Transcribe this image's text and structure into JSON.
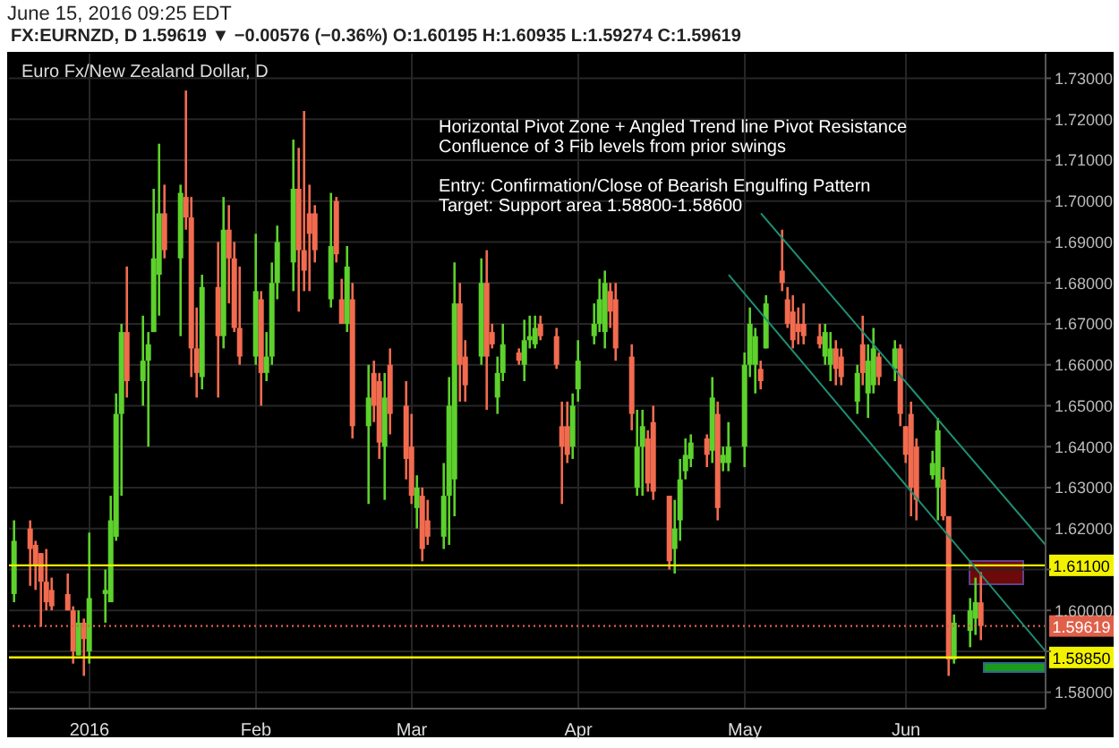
{
  "chart_data": {
    "type": "candlestick",
    "title": "FX:EURNZD, D 1.59619 ▼ −0.00576 (−0.36%) O:1.60195 H:1.60935 L:1.59274 C:1.59619",
    "subtitle": "Euro Fx/New Zealand Dollar, D",
    "annotations": [
      "June 15, 2016 09:25 EDT",
      "Horizontal Pivot Zone + Angled Trend line Pivot Resistance",
      "Confluence of 3 Fib levels from prior swings",
      "Entry: Confirmation/Close of Bearish Engulfing Pattern",
      "Target: Support area 1.58800-1.58600"
    ],
    "x": [
      "2015-12-18",
      "2015-12-21",
      "2015-12-22",
      "2015-12-23",
      "2015-12-24",
      "2015-12-25",
      "2015-12-28",
      "2015-12-29",
      "2015-12-30",
      "2015-12-31",
      "2016-01-01",
      "2016-01-04",
      "2016-01-05",
      "2016-01-06",
      "2016-01-07",
      "2016-01-08",
      "2016-01-11",
      "2016-01-12",
      "2016-01-13",
      "2016-01-14",
      "2016-01-15",
      "2016-01-18",
      "2016-01-19",
      "2016-01-20",
      "2016-01-21",
      "2016-01-22",
      "2016-01-25",
      "2016-01-26",
      "2016-01-27",
      "2016-01-28",
      "2016-01-29",
      "2016-02-01",
      "2016-02-02",
      "2016-02-03",
      "2016-02-04",
      "2016-02-05",
      "2016-02-08",
      "2016-02-09",
      "2016-02-10",
      "2016-02-11",
      "2016-02-12",
      "2016-02-15",
      "2016-02-16",
      "2016-02-17",
      "2016-02-18",
      "2016-02-19",
      "2016-02-22",
      "2016-02-23",
      "2016-02-24",
      "2016-02-25",
      "2016-02-26",
      "2016-02-29",
      "2016-03-01",
      "2016-03-02",
      "2016-03-03",
      "2016-03-04",
      "2016-03-07",
      "2016-03-08",
      "2016-03-09",
      "2016-03-10",
      "2016-03-11",
      "2016-03-14",
      "2016-03-15",
      "2016-03-16",
      "2016-03-17",
      "2016-03-18",
      "2016-03-21",
      "2016-03-22",
      "2016-03-23",
      "2016-03-24",
      "2016-03-25",
      "2016-03-28",
      "2016-03-29",
      "2016-03-30",
      "2016-03-31",
      "2016-04-01",
      "2016-04-04",
      "2016-04-05",
      "2016-04-06",
      "2016-04-07",
      "2016-04-08",
      "2016-04-11",
      "2016-04-12",
      "2016-04-13",
      "2016-04-14",
      "2016-04-15",
      "2016-04-18",
      "2016-04-19",
      "2016-04-20",
      "2016-04-21",
      "2016-04-22",
      "2016-04-25",
      "2016-04-26",
      "2016-04-27",
      "2016-04-28",
      "2016-04-29",
      "2016-05-02",
      "2016-05-03",
      "2016-05-04",
      "2016-05-05",
      "2016-05-06",
      "2016-05-09",
      "2016-05-10",
      "2016-05-11",
      "2016-05-12",
      "2016-05-13",
      "2016-05-16",
      "2016-05-17",
      "2016-05-18",
      "2016-05-19",
      "2016-05-20",
      "2016-05-23",
      "2016-05-24",
      "2016-05-25",
      "2016-05-26",
      "2016-05-27",
      "2016-05-30",
      "2016-05-31",
      "2016-06-01",
      "2016-06-02",
      "2016-06-03",
      "2016-06-06",
      "2016-06-07",
      "2016-06-08",
      "2016-06-09",
      "2016-06-10",
      "2016-06-13",
      "2016-06-14",
      "2016-06-15"
    ],
    "ohlc": [
      [
        1.604,
        1.622,
        1.602,
        1.617
      ],
      [
        1.62,
        1.622,
        1.606,
        1.615
      ],
      [
        1.616,
        1.617,
        1.605,
        1.611
      ],
      [
        1.614,
        1.614,
        1.596,
        1.607
      ],
      [
        1.607,
        1.615,
        1.6,
        1.602
      ],
      [
        1.605,
        1.608,
        1.6,
        1.601
      ],
      [
        1.604,
        1.609,
        1.6,
        1.6
      ],
      [
        1.6,
        1.601,
        1.587,
        1.59
      ],
      [
        1.589,
        1.6,
        1.589,
        1.597
      ],
      [
        1.597,
        1.598,
        1.584,
        1.593
      ],
      [
        1.59,
        1.619,
        1.587,
        1.603
      ],
      [
        1.604,
        1.61,
        1.597,
        1.605
      ],
      [
        1.602,
        1.628,
        1.602,
        1.622
      ],
      [
        1.618,
        1.653,
        1.617,
        1.648
      ],
      [
        1.648,
        1.67,
        1.628,
        1.668
      ],
      [
        1.668,
        1.684,
        1.652,
        1.656
      ],
      [
        1.656,
        1.672,
        1.65,
        1.661
      ],
      [
        1.661,
        1.668,
        1.64,
        1.665
      ],
      [
        1.668,
        1.703,
        1.668,
        1.686
      ],
      [
        1.682,
        1.714,
        1.672,
        1.697
      ],
      [
        1.697,
        1.704,
        1.686,
        1.688
      ],
      [
        1.686,
        1.704,
        1.667,
        1.702
      ],
      [
        1.701,
        1.727,
        1.693,
        1.696
      ],
      [
        1.696,
        1.701,
        1.657,
        1.664
      ],
      [
        1.664,
        1.674,
        1.652,
        1.658
      ],
      [
        1.657,
        1.682,
        1.654,
        1.679
      ],
      [
        1.679,
        1.69,
        1.652,
        1.667
      ],
      [
        1.667,
        1.701,
        1.664,
        1.693
      ],
      [
        1.693,
        1.699,
        1.675,
        1.686
      ],
      [
        1.686,
        1.69,
        1.668,
        1.669
      ],
      [
        1.669,
        1.684,
        1.66,
        1.662
      ],
      [
        1.662,
        1.692,
        1.66,
        1.678
      ],
      [
        1.676,
        1.678,
        1.65,
        1.658
      ],
      [
        1.658,
        1.668,
        1.656,
        1.662
      ],
      [
        1.662,
        1.685,
        1.66,
        1.68
      ],
      [
        1.68,
        1.694,
        1.676,
        1.69
      ],
      [
        1.685,
        1.715,
        1.678,
        1.703
      ],
      [
        1.703,
        1.713,
        1.673,
        1.688
      ],
      [
        1.688,
        1.722,
        1.678,
        1.683
      ],
      [
        1.697,
        1.704,
        1.678,
        1.692
      ],
      [
        1.697,
        1.699,
        1.685,
        1.688
      ],
      [
        1.676,
        1.702,
        1.674,
        1.689
      ],
      [
        1.7,
        1.701,
        1.685,
        1.687
      ],
      [
        1.676,
        1.681,
        1.67,
        1.67
      ],
      [
        1.67,
        1.689,
        1.668,
        1.684
      ],
      [
        1.676,
        1.68,
        1.642,
        1.645
      ],
      [
        1.645,
        1.66,
        1.626,
        1.652
      ],
      [
        1.658,
        1.661,
        1.646,
        1.65
      ],
      [
        1.656,
        1.658,
        1.637,
        1.641
      ],
      [
        1.64,
        1.658,
        1.627,
        1.652
      ],
      [
        1.66,
        1.664,
        1.643,
        1.648
      ],
      [
        1.65,
        1.656,
        1.632,
        1.637
      ],
      [
        1.64,
        1.648,
        1.626,
        1.628
      ],
      [
        1.625,
        1.633,
        1.62,
        1.63
      ],
      [
        1.628,
        1.63,
        1.612,
        1.615
      ],
      [
        1.622,
        1.627,
        1.616,
        1.618
      ],
      [
        1.618,
        1.636,
        1.615,
        1.628
      ],
      [
        1.628,
        1.657,
        1.616,
        1.65
      ],
      [
        1.632,
        1.685,
        1.623,
        1.675
      ],
      [
        1.675,
        1.68,
        1.651,
        1.66
      ],
      [
        1.662,
        1.666,
        1.651,
        1.655
      ],
      [
        1.662,
        1.686,
        1.66,
        1.68
      ],
      [
        1.68,
        1.688,
        1.649,
        1.662
      ],
      [
        1.668,
        1.67,
        1.664,
        1.665
      ],
      [
        1.652,
        1.662,
        1.648,
        1.658
      ],
      [
        1.658,
        1.67,
        1.656,
        1.665
      ],
      [
        1.663,
        1.664,
        1.66,
        1.661
      ],
      [
        1.66,
        1.671,
        1.656,
        1.666
      ],
      [
        1.666,
        1.672,
        1.664,
        1.667
      ],
      [
        1.665,
        1.672,
        1.664,
        1.669
      ],
      [
        1.67,
        1.672,
        1.666,
        1.667
      ],
      [
        1.667,
        1.669,
        1.659,
        1.66
      ],
      [
        1.645,
        1.651,
        1.626,
        1.64
      ],
      [
        1.645,
        1.651,
        1.636,
        1.638
      ],
      [
        1.64,
        1.653,
        1.637,
        1.65
      ],
      [
        1.654,
        1.666,
        1.651,
        1.661
      ],
      [
        1.667,
        1.675,
        1.665,
        1.67
      ],
      [
        1.67,
        1.681,
        1.668,
        1.676
      ],
      [
        1.668,
        1.683,
        1.664,
        1.68
      ],
      [
        1.678,
        1.68,
        1.669,
        1.673
      ],
      [
        1.676,
        1.68,
        1.661,
        1.664
      ],
      [
        1.662,
        1.665,
        1.644,
        1.648
      ],
      [
        1.63,
        1.649,
        1.628,
        1.64
      ],
      [
        1.64,
        1.649,
        1.628,
        1.645
      ],
      [
        1.642,
        1.644,
        1.629,
        1.631
      ],
      [
        1.646,
        1.65,
        1.627,
        1.629
      ],
      [
        1.628,
        1.628,
        1.61,
        1.612
      ],
      [
        1.615,
        1.627,
        1.609,
        1.62
      ],
      [
        1.622,
        1.637,
        1.617,
        1.632
      ],
      [
        1.634,
        1.642,
        1.632,
        1.638
      ],
      [
        1.637,
        1.643,
        1.635,
        1.641
      ],
      [
        1.642,
        1.643,
        1.635,
        1.638
      ],
      [
        1.639,
        1.657,
        1.636,
        1.652
      ],
      [
        1.648,
        1.651,
        1.622,
        1.625
      ],
      [
        1.636,
        1.64,
        1.634,
        1.638
      ],
      [
        1.636,
        1.646,
        1.634,
        1.64
      ],
      [
        1.64,
        1.663,
        1.635,
        1.66
      ],
      [
        1.66,
        1.674,
        1.657,
        1.67
      ],
      [
        1.66,
        1.669,
        1.653,
        1.667
      ],
      [
        1.659,
        1.661,
        1.654,
        1.656
      ],
      [
        1.664,
        1.677,
        1.664,
        1.675
      ],
      [
        1.683,
        1.693,
        1.678,
        1.68
      ],
      [
        1.676,
        1.679,
        1.669,
        1.67
      ],
      [
        1.673,
        1.677,
        1.664,
        1.666
      ],
      [
        1.67,
        1.674,
        1.665,
        1.668
      ],
      [
        1.67,
        1.675,
        1.665,
        1.667
      ],
      [
        1.667,
        1.67,
        1.664,
        1.665
      ],
      [
        1.662,
        1.67,
        1.66,
        1.668
      ],
      [
        1.66,
        1.668,
        1.656,
        1.664
      ],
      [
        1.664,
        1.666,
        1.655,
        1.659
      ],
      [
        1.662,
        1.664,
        1.655,
        1.657
      ],
      [
        1.651,
        1.66,
        1.648,
        1.658
      ],
      [
        1.665,
        1.672,
        1.655,
        1.658
      ],
      [
        1.653,
        1.665,
        1.647,
        1.661
      ],
      [
        1.655,
        1.669,
        1.653,
        1.664
      ],
      [
        1.662,
        1.663,
        1.655,
        1.657
      ],
      [
        1.659,
        1.666,
        1.656,
        1.664
      ],
      [
        1.664,
        1.665,
        1.645,
        1.648
      ],
      [
        1.645,
        1.645,
        1.636,
        1.638
      ],
      [
        1.648,
        1.651,
        1.623,
        1.63
      ],
      [
        1.64,
        1.642,
        1.622,
        1.627
      ],
      [
        1.633,
        1.639,
        1.632,
        1.636
      ],
      [
        1.63,
        1.647,
        1.622,
        1.644
      ],
      [
        1.632,
        1.635,
        1.622,
        1.623
      ],
      [
        1.623,
        1.623,
        1.584,
        1.588
      ],
      [
        1.588,
        1.599,
        1.587,
        1.597
      ],
      [
        1.595,
        1.603,
        1.591,
        1.6
      ],
      [
        1.598,
        1.608,
        1.594,
        1.602
      ],
      [
        1.60195,
        1.60935,
        1.59274,
        1.59619
      ]
    ],
    "series": [
      {
        "type": "line",
        "x": [
          "2016-05-05",
          "2016-06-27"
        ],
        "values": [
          1.697,
          1.616
        ],
        "color": "#1f8f74"
      },
      {
        "type": "line",
        "x": [
          "2016-04-29",
          "2016-06-27"
        ],
        "values": [
          1.682,
          1.59
        ],
        "color": "#1f8f74"
      }
    ],
    "xlim": [
      "2015-12-17",
      "2016-06-27"
    ],
    "xticks": [
      {
        "value": "2016-01-01",
        "label": "2016"
      },
      {
        "value": "2016-02-01",
        "label": "Feb"
      },
      {
        "value": "2016-03-01",
        "label": "Mar"
      },
      {
        "value": "2016-04-01",
        "label": "Apr"
      },
      {
        "value": "2016-05-02",
        "label": "May"
      },
      {
        "value": "2016-06-01",
        "label": "Jun"
      }
    ],
    "ylim": [
      1.576,
      1.736
    ],
    "yticks": [
      {
        "value": 1.58,
        "label": "1.58000"
      },
      {
        "value": 1.59,
        "label": null
      },
      {
        "value": 1.6,
        "label": "1.60000"
      },
      {
        "value": 1.61,
        "label": null
      },
      {
        "value": 1.62,
        "label": "1.62000"
      },
      {
        "value": 1.63,
        "label": "1.63000"
      },
      {
        "value": 1.64,
        "label": "1.64000"
      },
      {
        "value": 1.65,
        "label": "1.65000"
      },
      {
        "value": 1.66,
        "label": "1.66000"
      },
      {
        "value": 1.67,
        "label": "1.67000"
      },
      {
        "value": 1.68,
        "label": "1.68000"
      },
      {
        "value": 1.69,
        "label": "1.69000"
      },
      {
        "value": 1.7,
        "label": "1.70000"
      },
      {
        "value": 1.71,
        "label": "1.71000"
      },
      {
        "value": 1.72,
        "label": "1.72000"
      },
      {
        "value": 1.73,
        "label": "1.73000"
      }
    ],
    "grid": true,
    "ref_lines": [
      {
        "axis": "y",
        "value": 1.611,
        "label": "1.61100",
        "color": "#f2f200",
        "line_style": "solid"
      },
      {
        "axis": "y",
        "value": 1.5885,
        "label": "1.58850",
        "color": "#f2f200",
        "line_style": "solid"
      },
      {
        "axis": "y",
        "value": 1.59619,
        "label": "1.59619",
        "color": "#e0604a",
        "line_style": "dotted"
      }
    ]
  }
}
